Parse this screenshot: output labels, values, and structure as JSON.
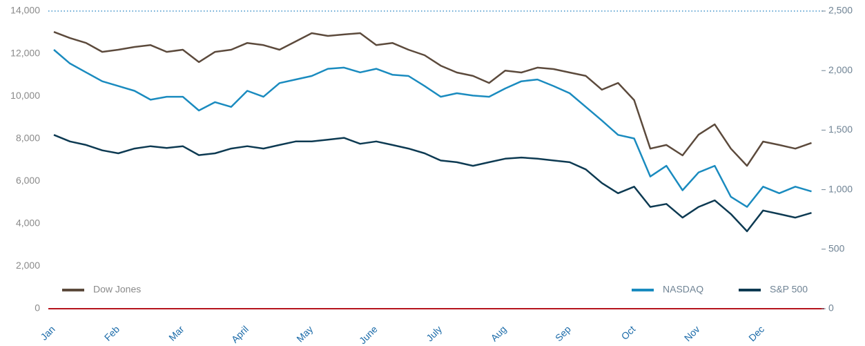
{
  "chart_data": {
    "type": "line",
    "categories": [
      "Jan",
      null,
      null,
      null,
      "Feb",
      null,
      null,
      null,
      "Mar",
      null,
      null,
      null,
      "April",
      null,
      null,
      null,
      "May",
      null,
      null,
      null,
      "June",
      null,
      null,
      null,
      "July",
      null,
      null,
      null,
      "Aug",
      null,
      null,
      null,
      "Sep",
      null,
      null,
      null,
      "Oct",
      null,
      null,
      null,
      "Nov",
      null,
      null,
      null,
      "Dec",
      null,
      null,
      null
    ],
    "series": [
      {
        "name": "Dow Jones",
        "color": "#5c4a3c",
        "axis": "y",
        "values": [
          13020,
          12730,
          12500,
          12080,
          12180,
          12310,
          12400,
          12080,
          12180,
          11600,
          12080,
          12180,
          12500,
          12400,
          12180,
          12570,
          12960,
          12830,
          12900,
          12960,
          12400,
          12500,
          12180,
          11920,
          11430,
          11110,
          10950,
          10620,
          11200,
          11110,
          11340,
          11270,
          11110,
          10950,
          10300,
          10620,
          9810,
          7530,
          7700,
          7210,
          8190,
          8670,
          7530,
          6720,
          7860,
          7700,
          7530,
          7800
        ]
      },
      {
        "name": "NASDAQ",
        "color": "#1a8bbf",
        "axis": "y2",
        "values": [
          2175,
          2060,
          1985,
          1910,
          1870,
          1830,
          1755,
          1780,
          1780,
          1665,
          1735,
          1695,
          1830,
          1780,
          1895,
          1925,
          1955,
          2015,
          2025,
          1985,
          2015,
          1965,
          1955,
          1870,
          1780,
          1810,
          1790,
          1780,
          1850,
          1910,
          1925,
          1870,
          1810,
          1695,
          1580,
          1460,
          1430,
          1110,
          1200,
          995,
          1145,
          1200,
          940,
          855,
          1025,
          970,
          1025,
          985
        ]
      },
      {
        "name": "S&P 500",
        "color": "#0d3a52",
        "axis": "y2",
        "values": [
          1460,
          1405,
          1375,
          1330,
          1305,
          1345,
          1365,
          1350,
          1365,
          1290,
          1305,
          1345,
          1365,
          1345,
          1375,
          1405,
          1405,
          1420,
          1435,
          1385,
          1405,
          1375,
          1345,
          1305,
          1245,
          1230,
          1200,
          1230,
          1260,
          1270,
          1260,
          1245,
          1230,
          1170,
          1055,
          970,
          1025,
          855,
          880,
          765,
          855,
          910,
          795,
          650,
          825,
          795,
          765,
          805
        ]
      }
    ],
    "ylim": [
      0,
      14000
    ],
    "yticks": [
      0,
      {
        "value": 2000,
        "label": "2,000"
      },
      {
        "value": 4000,
        "label": "4,000"
      },
      {
        "value": 6000,
        "label": "6,000"
      },
      {
        "value": 8000,
        "label": "8,000"
      },
      {
        "value": 10000,
        "label": "10,000"
      },
      {
        "value": 12000,
        "label": "12,000"
      },
      {
        "value": 14000,
        "label": "14,000"
      }
    ],
    "y2lim": [
      0,
      2500
    ],
    "y2ticks": [
      0,
      500,
      {
        "value": 1000,
        "label": "1,000"
      },
      {
        "value": 1500,
        "label": "1,500"
      },
      {
        "value": 2000,
        "label": "2,000"
      },
      {
        "value": 2500,
        "label": "2,500"
      }
    ]
  }
}
